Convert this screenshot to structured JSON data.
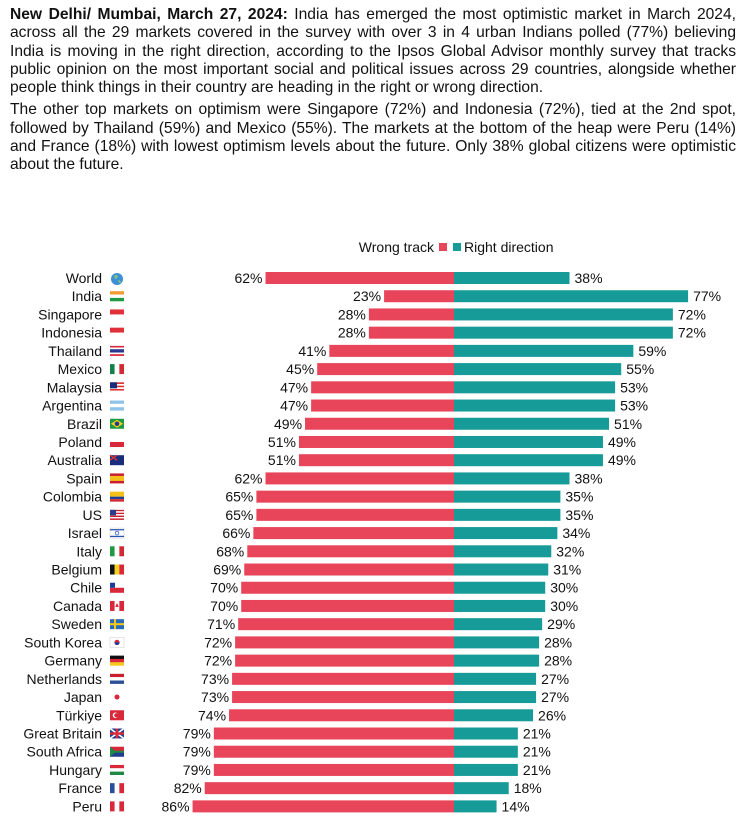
{
  "article": {
    "dateline": "New Delhi/ Mumbai, March 27, 2024:",
    "paragraph1": " India has emerged the most optimistic market in March 2024, across all the 29 markets covered in the survey with over 3 in 4 urban Indians polled (77%) believing India is moving in the right direction, according to the Ipsos Global Advisor monthly survey that  tracks public opinion on the most important social and political issues across 29 countries, alongside whether people think things in their country are heading in the right or wrong direction.",
    "paragraph2": "The other top markets on optimism were Singapore (72%) and Indonesia (72%), tied at the 2nd spot, followed by Thailand (59%) and Mexico (55%). The markets at the bottom of the heap were Peru (14%) and France (18%) with lowest optimism levels about the future. Only 38% global citizens were optimistic about the future."
  },
  "colors": {
    "wrong": "#e8445a",
    "right": "#169b98"
  },
  "chart_data": {
    "type": "bar",
    "orientation": "diverging-horizontal",
    "title": "",
    "legend": {
      "position": "top-right",
      "entries": [
        "Wrong track",
        "Right direction"
      ]
    },
    "categories": [
      "World",
      "India",
      "Singapore",
      "Indonesia",
      "Thailand",
      "Mexico",
      "Malaysia",
      "Argentina",
      "Brazil",
      "Poland",
      "Australia",
      "Spain",
      "Colombia",
      "US",
      "Israel",
      "Italy",
      "Belgium",
      "Chile",
      "Canada",
      "Sweden",
      "South Korea",
      "Germany",
      "Netherlands",
      "Japan",
      "Türkiye",
      "Great Britain",
      "South Africa",
      "Hungary",
      "France",
      "Peru"
    ],
    "series": [
      {
        "name": "Wrong track",
        "values": [
          62,
          23,
          28,
          28,
          41,
          45,
          47,
          47,
          49,
          51,
          51,
          62,
          65,
          65,
          66,
          68,
          69,
          70,
          70,
          71,
          72,
          72,
          73,
          73,
          74,
          79,
          79,
          79,
          82,
          86
        ]
      },
      {
        "name": "Right direction",
        "values": [
          38,
          77,
          72,
          72,
          59,
          55,
          53,
          53,
          51,
          49,
          49,
          38,
          35,
          35,
          34,
          32,
          31,
          30,
          30,
          29,
          28,
          28,
          27,
          27,
          26,
          21,
          21,
          21,
          18,
          14
        ]
      }
    ],
    "value_suffix": "%",
    "flags": [
      "globe-icon",
      "flag-india-icon",
      "flag-singapore-icon",
      "flag-indonesia-icon",
      "flag-thailand-icon",
      "flag-mexico-icon",
      "flag-malaysia-icon",
      "flag-argentina-icon",
      "flag-brazil-icon",
      "flag-poland-icon",
      "flag-australia-icon",
      "flag-spain-icon",
      "flag-colombia-icon",
      "flag-us-icon",
      "flag-israel-icon",
      "flag-italy-icon",
      "flag-belgium-icon",
      "flag-chile-icon",
      "flag-canada-icon",
      "flag-sweden-icon",
      "flag-south-korea-icon",
      "flag-germany-icon",
      "flag-netherlands-icon",
      "flag-japan-icon",
      "flag-turkiye-icon",
      "flag-great-britain-icon",
      "flag-south-africa-icon",
      "flag-hungary-icon",
      "flag-france-icon",
      "flag-peru-icon"
    ]
  }
}
